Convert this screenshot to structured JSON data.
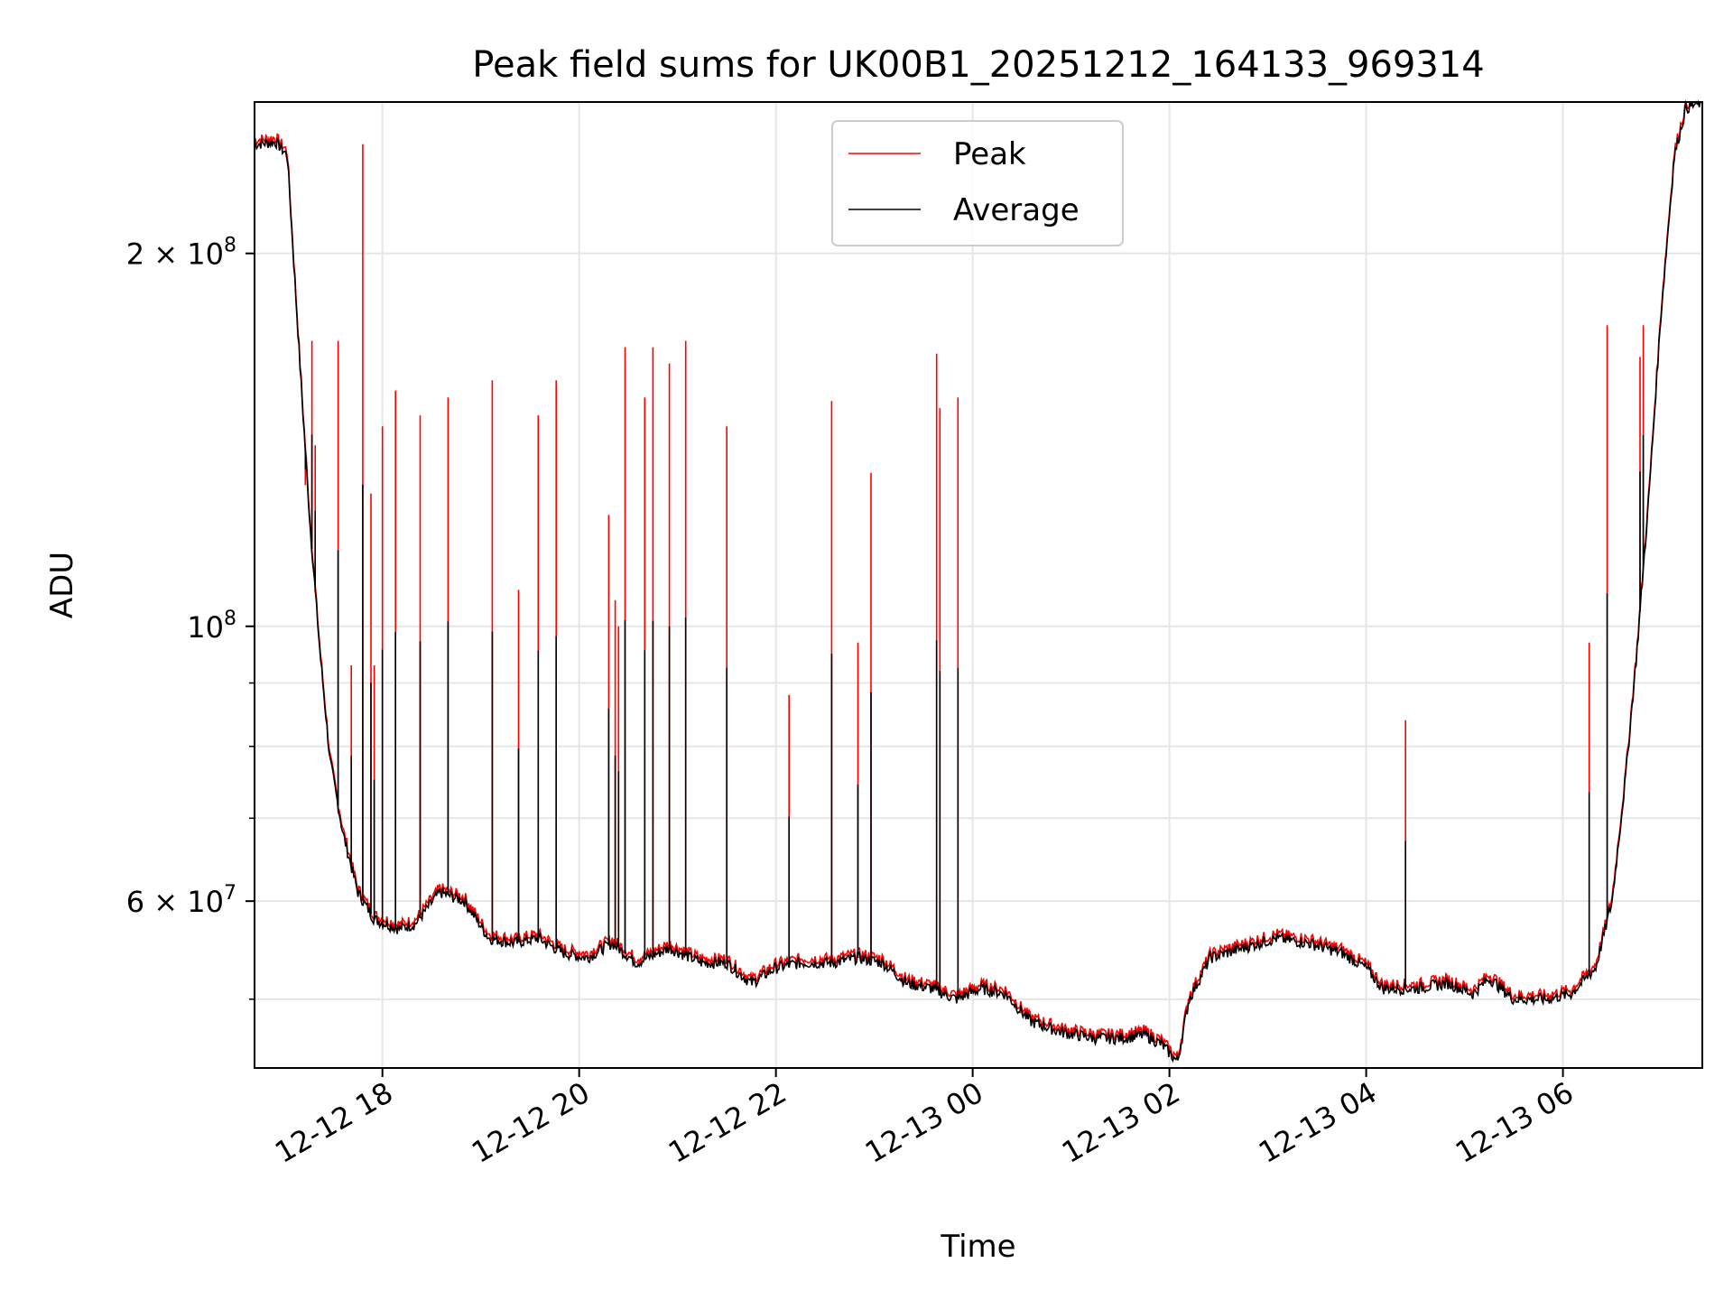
{
  "chart_data": {
    "type": "line",
    "title": "Peak field sums for UK00B1_20251212_164133_969314",
    "xlabel": "Time",
    "ylabel": "ADU",
    "y_scale": "log",
    "ylim": [
      44000000,
      265000000
    ],
    "xlim": [
      "2025-12-12 16:42",
      "2025-12-13 07:25"
    ],
    "grid": true,
    "legend_placement": "upper-center",
    "x_ticks": [
      {
        "value": "2025-12-12 18:00",
        "label": "12-12 18"
      },
      {
        "value": "2025-12-12 20:00",
        "label": "12-12 20"
      },
      {
        "value": "2025-12-12 22:00",
        "label": "12-12 22"
      },
      {
        "value": "2025-12-13 00:00",
        "label": "12-13 00"
      },
      {
        "value": "2025-12-13 02:00",
        "label": "12-13 02"
      },
      {
        "value": "2025-12-13 04:00",
        "label": "12-13 04"
      },
      {
        "value": "2025-12-13 06:00",
        "label": "12-13 06"
      }
    ],
    "y_ticks_major": [
      {
        "value": 200000000,
        "mantissa": "2",
        "exponent": "8"
      },
      {
        "value": 100000000,
        "mantissa": "",
        "exponent": "8"
      },
      {
        "value": 60000000,
        "mantissa": "6",
        "exponent": "7"
      }
    ],
    "y_ticks_minor": [
      50000000,
      70000000,
      80000000,
      90000000
    ],
    "series": [
      {
        "name": "Average",
        "color": "#000000",
        "points": [
          [
            "2025-12-12 16:42",
            245000000
          ],
          [
            "2025-12-12 16:55",
            246000000
          ],
          [
            "2025-12-12 17:02",
            240000000
          ],
          [
            "2025-12-12 17:10",
            160000000
          ],
          [
            "2025-12-12 17:16",
            120000000
          ],
          [
            "2025-12-12 17:22",
            95000000
          ],
          [
            "2025-12-12 17:28",
            78000000
          ],
          [
            "2025-12-12 17:36",
            68000000
          ],
          [
            "2025-12-12 17:45",
            61000000
          ],
          [
            "2025-12-12 17:55",
            58000000
          ],
          [
            "2025-12-12 18:10",
            57000000
          ],
          [
            "2025-12-12 18:20",
            57500000
          ],
          [
            "2025-12-12 18:35",
            61000000
          ],
          [
            "2025-12-12 18:50",
            60000000
          ],
          [
            "2025-12-12 19:05",
            56000000
          ],
          [
            "2025-12-12 19:20",
            55500000
          ],
          [
            "2025-12-12 19:35",
            56000000
          ],
          [
            "2025-12-12 19:50",
            54500000
          ],
          [
            "2025-12-12 20:05",
            54000000
          ],
          [
            "2025-12-12 20:20",
            55500000
          ],
          [
            "2025-12-12 20:35",
            53500000
          ],
          [
            "2025-12-12 20:55",
            55000000
          ],
          [
            "2025-12-12 21:15",
            53500000
          ],
          [
            "2025-12-12 21:30",
            53500000
          ],
          [
            "2025-12-12 21:45",
            51500000
          ],
          [
            "2025-12-12 22:00",
            53000000
          ],
          [
            "2025-12-12 22:15",
            53500000
          ],
          [
            "2025-12-12 22:35",
            53500000
          ],
          [
            "2025-12-12 22:50",
            54000000
          ],
          [
            "2025-12-12 23:05",
            53500000
          ],
          [
            "2025-12-12 23:20",
            51500000
          ],
          [
            "2025-12-12 23:35",
            51000000
          ],
          [
            "2025-12-12 23:50",
            50000000
          ],
          [
            "2025-12-13 00:05",
            51000000
          ],
          [
            "2025-12-13 00:20",
            50500000
          ],
          [
            "2025-12-13 00:35",
            48000000
          ],
          [
            "2025-12-13 00:55",
            47000000
          ],
          [
            "2025-12-13 01:15",
            46500000
          ],
          [
            "2025-12-13 01:30",
            46500000
          ],
          [
            "2025-12-13 01:45",
            46800000
          ],
          [
            "2025-12-13 01:55",
            46000000
          ],
          [
            "2025-12-13 02:05",
            44500000
          ],
          [
            "2025-12-13 02:12",
            50000000
          ],
          [
            "2025-12-13 02:25",
            54000000
          ],
          [
            "2025-12-13 02:45",
            55000000
          ],
          [
            "2025-12-13 03:05",
            56000000
          ],
          [
            "2025-12-13 03:25",
            55500000
          ],
          [
            "2025-12-13 03:45",
            54500000
          ],
          [
            "2025-12-13 04:00",
            53000000
          ],
          [
            "2025-12-13 04:10",
            51000000
          ],
          [
            "2025-12-13 04:30",
            51000000
          ],
          [
            "2025-12-13 04:50",
            51500000
          ],
          [
            "2025-12-13 05:05",
            50500000
          ],
          [
            "2025-12-13 05:15",
            52000000
          ],
          [
            "2025-12-13 05:30",
            50000000
          ],
          [
            "2025-12-13 05:50",
            50000000
          ],
          [
            "2025-12-13 06:05",
            50500000
          ],
          [
            "2025-12-13 06:20",
            53000000
          ],
          [
            "2025-12-13 06:30",
            60000000
          ],
          [
            "2025-12-13 06:38",
            75000000
          ],
          [
            "2025-12-13 06:45",
            95000000
          ],
          [
            "2025-12-13 06:52",
            125000000
          ],
          [
            "2025-12-13 07:00",
            180000000
          ],
          [
            "2025-12-13 07:08",
            240000000
          ],
          [
            "2025-12-13 07:15",
            262000000
          ],
          [
            "2025-12-13 07:25",
            265000000
          ]
        ]
      },
      {
        "name": "Peak",
        "color": "#ff0000",
        "spikes": [
          [
            "2025-12-12 17:13",
            130000000
          ],
          [
            "2025-12-12 17:17",
            170000000
          ],
          [
            "2025-12-12 17:19",
            140000000
          ],
          [
            "2025-12-12 17:33",
            170000000
          ],
          [
            "2025-12-12 17:41",
            93000000
          ],
          [
            "2025-12-12 17:48",
            245000000
          ],
          [
            "2025-12-12 17:53",
            128000000
          ],
          [
            "2025-12-12 17:55",
            93000000
          ],
          [
            "2025-12-12 18:00",
            145000000
          ],
          [
            "2025-12-12 18:08",
            155000000
          ],
          [
            "2025-12-12 18:23",
            148000000
          ],
          [
            "2025-12-12 18:40",
            153000000
          ],
          [
            "2025-12-12 19:07",
            158000000
          ],
          [
            "2025-12-12 19:23",
            107000000
          ],
          [
            "2025-12-12 19:35",
            148000000
          ],
          [
            "2025-12-12 19:46",
            158000000
          ],
          [
            "2025-12-12 20:18",
            123000000
          ],
          [
            "2025-12-12 20:22",
            105000000
          ],
          [
            "2025-12-12 20:24",
            100000000
          ],
          [
            "2025-12-12 20:28",
            168000000
          ],
          [
            "2025-12-12 20:40",
            153000000
          ],
          [
            "2025-12-12 20:45",
            168000000
          ],
          [
            "2025-12-12 20:55",
            163000000
          ],
          [
            "2025-12-12 21:05",
            170000000
          ],
          [
            "2025-12-12 21:30",
            145000000
          ],
          [
            "2025-12-12 22:08",
            88000000
          ],
          [
            "2025-12-12 22:34",
            152000000
          ],
          [
            "2025-12-12 22:50",
            97000000
          ],
          [
            "2025-12-12 22:58",
            133000000
          ],
          [
            "2025-12-12 23:38",
            166000000
          ],
          [
            "2025-12-12 23:40",
            150000000
          ],
          [
            "2025-12-12 23:51",
            153000000
          ],
          [
            "2025-12-13 04:24",
            84000000
          ],
          [
            "2025-12-13 06:16",
            97000000
          ],
          [
            "2025-12-13 06:27",
            175000000
          ],
          [
            "2025-12-13 06:47",
            165000000
          ],
          [
            "2025-12-13 06:49",
            175000000
          ]
        ]
      }
    ]
  }
}
